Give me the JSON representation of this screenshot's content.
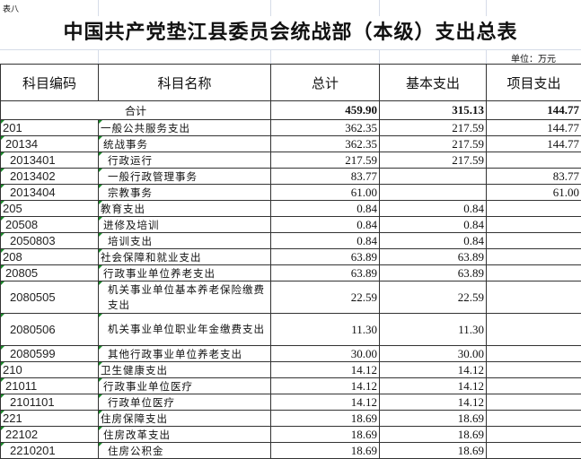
{
  "sheet_label": "表八",
  "title": "中国共产党垫江县委员会统战部（本级）支出总表",
  "unit": "单位：万元",
  "headers": [
    "科目编码",
    "科目名称",
    "总计",
    "基本支出",
    "项目支出"
  ],
  "total": {
    "label": "合计",
    "total": "459.90",
    "basic": "315.13",
    "project": "144.77"
  },
  "rows": [
    {
      "code": "201",
      "name": "一般公共服务支出",
      "total": "362.35",
      "basic": "217.59",
      "project": "144.77",
      "level": 0
    },
    {
      "code": "20134",
      "name": "统战事务",
      "total": "362.35",
      "basic": "217.59",
      "project": "144.77",
      "level": 1
    },
    {
      "code": "2013401",
      "name": "行政运行",
      "total": "217.59",
      "basic": "217.59",
      "project": "",
      "level": 2
    },
    {
      "code": "2013402",
      "name": "一般行政管理事务",
      "total": "83.77",
      "basic": "",
      "project": "83.77",
      "level": 2
    },
    {
      "code": "2013404",
      "name": "宗教事务",
      "total": "61.00",
      "basic": "",
      "project": "61.00",
      "level": 2
    },
    {
      "code": "205",
      "name": "教育支出",
      "total": "0.84",
      "basic": "0.84",
      "project": "",
      "level": 0
    },
    {
      "code": "20508",
      "name": "进修及培训",
      "total": "0.84",
      "basic": "0.84",
      "project": "",
      "level": 1
    },
    {
      "code": "2050803",
      "name": "培训支出",
      "total": "0.84",
      "basic": "0.84",
      "project": "",
      "level": 2
    },
    {
      "code": "208",
      "name": "社会保障和就业支出",
      "total": "63.89",
      "basic": "63.89",
      "project": "",
      "level": 0
    },
    {
      "code": "20805",
      "name": "行政事业单位养老支出",
      "total": "63.89",
      "basic": "63.89",
      "project": "",
      "level": 1
    },
    {
      "code": "2080505",
      "name": "机关事业单位基本养老保险缴费支出",
      "total": "22.59",
      "basic": "22.59",
      "project": "",
      "level": 2,
      "wrap": true
    },
    {
      "code": "2080506",
      "name": "机关事业单位职业年金缴费支出",
      "total": "11.30",
      "basic": "11.30",
      "project": "",
      "level": 2,
      "wrap": true
    },
    {
      "code": "2080599",
      "name": "其他行政事业单位养老支出",
      "total": "30.00",
      "basic": "30.00",
      "project": "",
      "level": 2
    },
    {
      "code": "210",
      "name": "卫生健康支出",
      "total": "14.12",
      "basic": "14.12",
      "project": "",
      "level": 0
    },
    {
      "code": "21011",
      "name": "行政事业单位医疗",
      "total": "14.12",
      "basic": "14.12",
      "project": "",
      "level": 1
    },
    {
      "code": "2101101",
      "name": "行政单位医疗",
      "total": "14.12",
      "basic": "14.12",
      "project": "",
      "level": 2
    },
    {
      "code": "221",
      "name": "住房保障支出",
      "total": "18.69",
      "basic": "18.69",
      "project": "",
      "level": 0
    },
    {
      "code": "22102",
      "name": "住房改革支出",
      "total": "18.69",
      "basic": "18.69",
      "project": "",
      "level": 1
    },
    {
      "code": "2210201",
      "name": "住房公积金",
      "total": "18.69",
      "basic": "18.69",
      "project": "",
      "level": 2
    }
  ]
}
